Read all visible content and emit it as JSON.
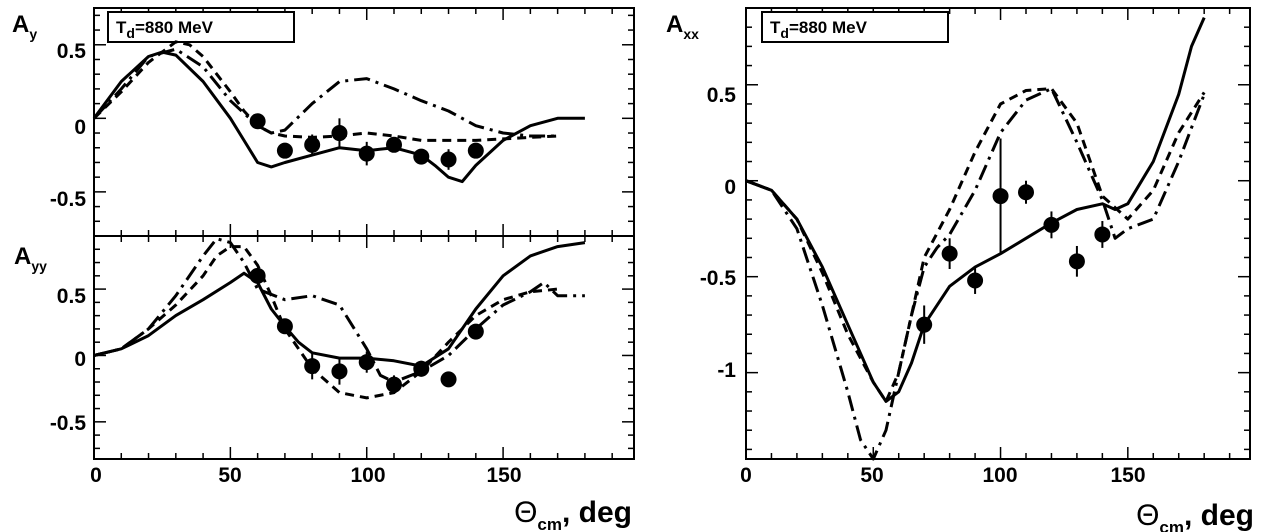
{
  "chart_data": [
    {
      "type": "line",
      "panel": "Ay",
      "ylabel_main": "A",
      "ylabel_sub": "y",
      "label_box": {
        "main": "T",
        "sub": "d",
        "rest": "=880 MeV"
      },
      "xlim": [
        0,
        198
      ],
      "ylim": [
        -0.8,
        0.75
      ],
      "yticks": [
        0.5,
        0,
        -0.5
      ],
      "ytick_labels": [
        "0.5",
        "0",
        "-0.5"
      ],
      "series": [
        {
          "style": "solid",
          "x": [
            0,
            10,
            20,
            25,
            30,
            40,
            50,
            55,
            60,
            65,
            70,
            80,
            90,
            100,
            110,
            120,
            125,
            130,
            135,
            140,
            150,
            160,
            170,
            180
          ],
          "y": [
            0,
            0.25,
            0.42,
            0.45,
            0.43,
            0.25,
            0.0,
            -0.15,
            -0.3,
            -0.33,
            -0.3,
            -0.25,
            -0.2,
            -0.22,
            -0.2,
            -0.25,
            -0.32,
            -0.4,
            -0.43,
            -0.32,
            -0.15,
            -0.05,
            0.0,
            0.0
          ]
        },
        {
          "style": "dashed",
          "x": [
            0,
            10,
            20,
            30,
            35,
            40,
            50,
            55,
            60,
            65,
            70,
            80,
            90,
            100,
            110,
            120,
            130,
            140,
            150,
            160,
            170
          ],
          "y": [
            0,
            0.18,
            0.38,
            0.52,
            0.5,
            0.42,
            0.18,
            0.05,
            -0.05,
            -0.1,
            -0.12,
            -0.13,
            -0.12,
            -0.1,
            -0.12,
            -0.15,
            -0.15,
            -0.15,
            -0.14,
            -0.13,
            -0.12
          ]
        },
        {
          "style": "dash-dot",
          "x": [
            0,
            10,
            20,
            30,
            40,
            50,
            60,
            65,
            70,
            80,
            90,
            100,
            110,
            120,
            130,
            140,
            150,
            160,
            170
          ],
          "y": [
            0,
            0.2,
            0.42,
            0.47,
            0.35,
            0.12,
            -0.05,
            -0.1,
            -0.08,
            0.1,
            0.25,
            0.27,
            0.2,
            0.12,
            0.05,
            -0.05,
            -0.1,
            -0.12,
            -0.12
          ]
        }
      ],
      "points": {
        "x": [
          60,
          70,
          80,
          90,
          100,
          110,
          120,
          130,
          140
        ],
        "y": [
          -0.02,
          -0.22,
          -0.18,
          -0.1,
          -0.24,
          -0.18,
          -0.26,
          -0.28,
          -0.22
        ],
        "yerr": [
          0.05,
          0.05,
          0.07,
          0.1,
          0.08,
          0.05,
          0.05,
          0.07,
          0.05
        ]
      }
    },
    {
      "type": "line",
      "panel": "Ayy",
      "ylabel_main": "A",
      "ylabel_sub": "yy",
      "xlim": [
        0,
        198
      ],
      "ylim": [
        -0.78,
        0.9
      ],
      "yticks": [
        0.5,
        0,
        -0.5
      ],
      "ytick_labels": [
        "0.5",
        "0",
        "-0.5"
      ],
      "xticks": [
        0,
        50,
        100,
        150
      ],
      "xtick_labels": [
        "0",
        "50",
        "100",
        "150"
      ],
      "series": [
        {
          "style": "solid",
          "x": [
            0,
            10,
            20,
            30,
            40,
            50,
            55,
            60,
            65,
            70,
            75,
            80,
            90,
            100,
            110,
            120,
            130,
            140,
            150,
            160,
            170,
            180
          ],
          "y": [
            0,
            0.05,
            0.15,
            0.3,
            0.42,
            0.55,
            0.62,
            0.55,
            0.35,
            0.22,
            0.1,
            0.02,
            -0.02,
            -0.02,
            -0.04,
            -0.08,
            0.05,
            0.35,
            0.6,
            0.75,
            0.82,
            0.85
          ]
        },
        {
          "style": "dashed",
          "x": [
            0,
            10,
            20,
            30,
            40,
            45,
            50,
            55,
            60,
            65,
            70,
            80,
            90,
            100,
            110,
            120,
            130,
            140,
            150,
            160,
            170
          ],
          "y": [
            0,
            0.05,
            0.2,
            0.38,
            0.6,
            0.75,
            0.82,
            0.82,
            0.68,
            0.45,
            0.2,
            -0.1,
            -0.28,
            -0.32,
            -0.28,
            -0.12,
            0.1,
            0.3,
            0.42,
            0.48,
            0.5
          ]
        },
        {
          "style": "dash-dot",
          "x": [
            0,
            10,
            20,
            30,
            40,
            45,
            50,
            55,
            60,
            70,
            80,
            90,
            100,
            105,
            110,
            120,
            130,
            140,
            150,
            160,
            165,
            170,
            180
          ],
          "y": [
            0,
            0.05,
            0.2,
            0.45,
            0.75,
            0.88,
            0.85,
            0.7,
            0.5,
            0.42,
            0.45,
            0.38,
            0.05,
            -0.15,
            -0.2,
            -0.12,
            0.0,
            0.2,
            0.38,
            0.48,
            0.55,
            0.45,
            0.45
          ]
        }
      ],
      "points": {
        "x": [
          60,
          70,
          80,
          90,
          100,
          110,
          120,
          130,
          140
        ],
        "y": [
          0.6,
          0.22,
          -0.08,
          -0.12,
          -0.05,
          -0.22,
          -0.1,
          -0.18,
          0.18
        ],
        "yerr": [
          0.05,
          0.05,
          0.1,
          0.1,
          0.08,
          0.07,
          0.06,
          0.05,
          0.05
        ]
      },
      "xlabel_main": "Θ",
      "xlabel_sub": "cm",
      "xlabel_rest": ", deg"
    },
    {
      "type": "line",
      "panel": "Axx",
      "ylabel_main": "A",
      "ylabel_sub": "xx",
      "label_box": {
        "main": "T",
        "sub": "d",
        "rest": "=880 MeV"
      },
      "xlim": [
        0,
        198
      ],
      "ylim": [
        -1.45,
        0.9
      ],
      "yticks": [
        0.5,
        0,
        -0.5,
        -1
      ],
      "ytick_labels": [
        "0.5",
        "0",
        "-0.5",
        "-1"
      ],
      "xticks": [
        0,
        50,
        100,
        150
      ],
      "xtick_labels": [
        "0",
        "50",
        "100",
        "150"
      ],
      "series": [
        {
          "style": "solid",
          "x": [
            0,
            10,
            20,
            30,
            40,
            50,
            55,
            60,
            65,
            70,
            80,
            90,
            100,
            110,
            120,
            130,
            140,
            145,
            150,
            160,
            170,
            175,
            180
          ],
          "y": [
            0,
            -0.05,
            -0.2,
            -0.45,
            -0.75,
            -1.05,
            -1.15,
            -1.1,
            -0.95,
            -0.75,
            -0.55,
            -0.45,
            -0.38,
            -0.3,
            -0.22,
            -0.15,
            -0.12,
            -0.15,
            -0.12,
            0.1,
            0.45,
            0.7,
            0.85
          ]
        },
        {
          "style": "dashed",
          "x": [
            0,
            10,
            20,
            30,
            40,
            50,
            55,
            60,
            65,
            70,
            80,
            90,
            100,
            110,
            120,
            130,
            140,
            150,
            160,
            170,
            180
          ],
          "y": [
            0,
            -0.05,
            -0.2,
            -0.48,
            -0.8,
            -1.05,
            -1.15,
            -1.0,
            -0.7,
            -0.4,
            -0.15,
            0.15,
            0.4,
            0.47,
            0.48,
            0.3,
            -0.08,
            -0.2,
            -0.05,
            0.25,
            0.46
          ]
        },
        {
          "style": "dash-dot",
          "x": [
            0,
            10,
            20,
            30,
            40,
            45,
            50,
            55,
            60,
            65,
            70,
            75,
            80,
            90,
            100,
            110,
            120,
            130,
            140,
            145,
            150,
            160,
            170,
            180
          ],
          "y": [
            0,
            -0.05,
            -0.25,
            -0.65,
            -1.1,
            -1.35,
            -1.45,
            -1.3,
            -1.0,
            -0.7,
            -0.45,
            -0.35,
            -0.28,
            -0.05,
            0.25,
            0.42,
            0.48,
            0.2,
            -0.1,
            -0.3,
            -0.25,
            -0.2,
            0.1,
            0.45
          ]
        }
      ],
      "points": {
        "x": [
          70,
          80,
          90,
          100,
          110,
          120,
          130,
          140
        ],
        "y": [
          -0.75,
          -0.38,
          -0.52,
          -0.08,
          -0.06,
          -0.23,
          -0.42,
          -0.28
        ],
        "yerr": [
          0.1,
          0.08,
          0.07,
          0.3,
          0.06,
          0.07,
          0.08,
          0.07
        ]
      },
      "xlabel_main": "Θ",
      "xlabel_sub": "cm",
      "xlabel_rest": ", deg"
    }
  ]
}
